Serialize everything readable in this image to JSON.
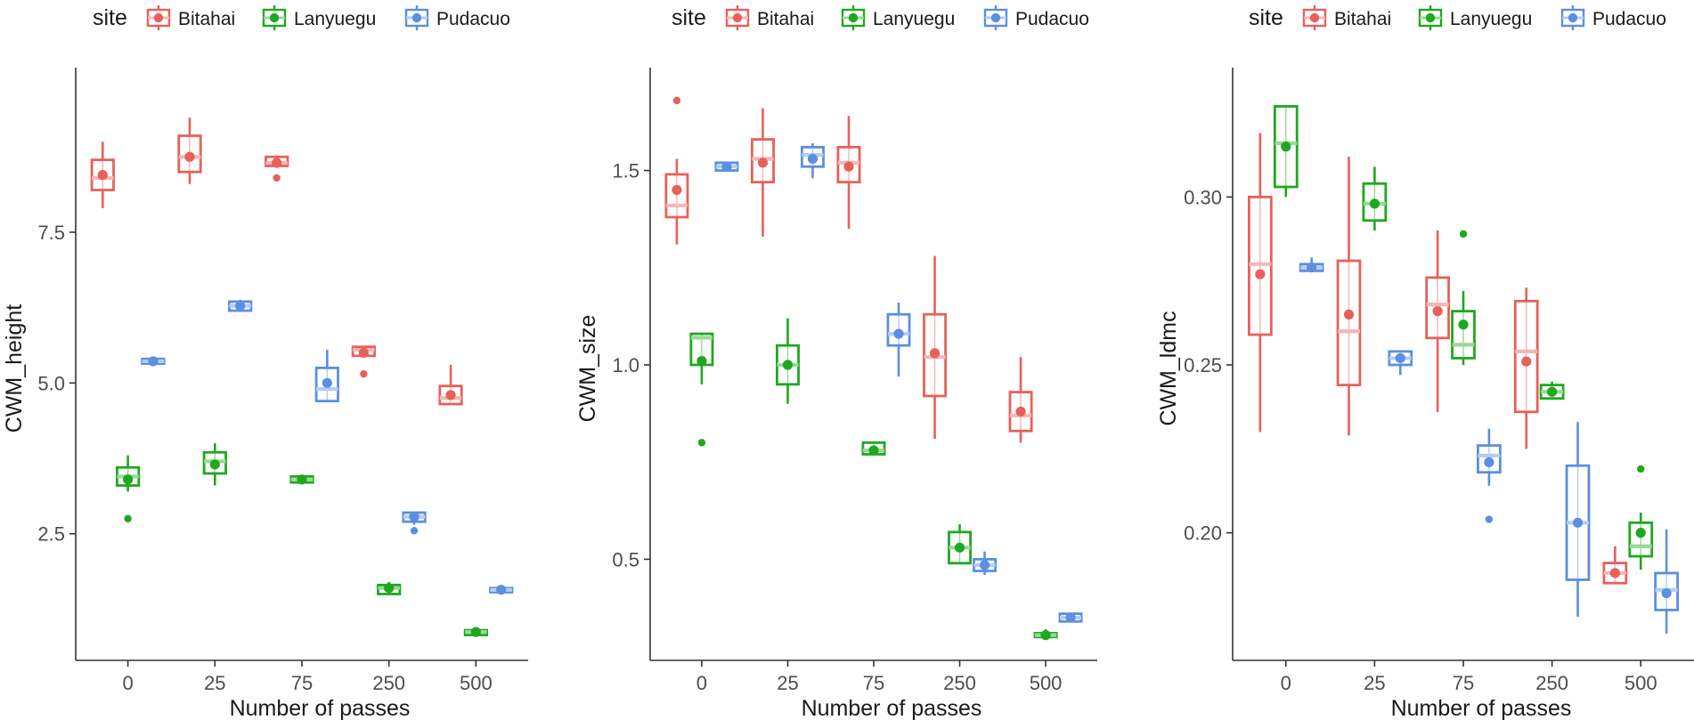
{
  "legend": {
    "title": "site",
    "entries": [
      {
        "label": "Bitahai",
        "color": "#E8605A"
      },
      {
        "label": "Lanyuegu",
        "color": "#1FA81F"
      },
      {
        "label": "Pudacuo",
        "color": "#5B8FE0"
      }
    ]
  },
  "chart_data": [
    {
      "type": "box",
      "title": "",
      "xlabel": "Number of passes",
      "ylabel": "CWM_height",
      "categories": [
        "0",
        "25",
        "75",
        "250",
        "500"
      ],
      "yticks": [
        2.5,
        5.0,
        7.5
      ],
      "ytick_labels": [
        "2.5",
        "5.0",
        "7.5"
      ],
      "ylim": [
        0.4,
        10.2
      ],
      "series": [
        {
          "name": "Bitahai",
          "boxes": [
            {
              "q1": 8.2,
              "median": 8.4,
              "q3": 8.7,
              "lo": 7.9,
              "hi": 9.0,
              "mean": 8.45,
              "out": []
            },
            {
              "q1": 8.5,
              "median": 8.75,
              "q3": 9.1,
              "lo": 8.3,
              "hi": 9.4,
              "mean": 8.75,
              "out": []
            },
            {
              "q1": 8.6,
              "median": 8.65,
              "q3": 8.75,
              "lo": 8.6,
              "hi": 8.75,
              "mean": 8.65,
              "out": [
                8.4
              ]
            },
            {
              "q1": 5.45,
              "median": 5.55,
              "q3": 5.6,
              "lo": 5.45,
              "hi": 5.6,
              "mean": 5.5,
              "out": [
                5.15
              ]
            },
            {
              "q1": 4.65,
              "median": 4.75,
              "q3": 4.95,
              "lo": 4.65,
              "hi": 5.3,
              "mean": 4.8,
              "out": []
            }
          ]
        },
        {
          "name": "Lanyuegu",
          "boxes": [
            {
              "q1": 3.3,
              "median": 3.45,
              "q3": 3.6,
              "lo": 3.2,
              "hi": 3.8,
              "mean": 3.4,
              "out": [
                2.75
              ]
            },
            {
              "q1": 3.5,
              "median": 3.7,
              "q3": 3.85,
              "lo": 3.3,
              "hi": 4.0,
              "mean": 3.65,
              "out": []
            },
            {
              "q1": 3.35,
              "median": 3.4,
              "q3": 3.45,
              "lo": 3.35,
              "hi": 3.45,
              "mean": 3.4,
              "out": []
            },
            {
              "q1": 1.5,
              "median": 1.6,
              "q3": 1.65,
              "lo": 1.5,
              "hi": 1.7,
              "mean": 1.6,
              "out": []
            },
            {
              "q1": 0.82,
              "median": 0.87,
              "q3": 0.9,
              "lo": 0.82,
              "hi": 0.92,
              "mean": 0.87,
              "out": []
            }
          ]
        },
        {
          "name": "Pudacuo",
          "boxes": [
            {
              "q1": 5.32,
              "median": 5.36,
              "q3": 5.4,
              "lo": 5.3,
              "hi": 5.42,
              "mean": 5.36,
              "out": []
            },
            {
              "q1": 6.2,
              "median": 6.28,
              "q3": 6.35,
              "lo": 6.2,
              "hi": 6.38,
              "mean": 6.28,
              "out": []
            },
            {
              "q1": 4.7,
              "median": 4.9,
              "q3": 5.25,
              "lo": 4.7,
              "hi": 5.55,
              "mean": 5.0,
              "out": []
            },
            {
              "q1": 2.7,
              "median": 2.78,
              "q3": 2.85,
              "lo": 2.65,
              "hi": 2.85,
              "mean": 2.78,
              "out": [
                2.55
              ]
            },
            {
              "q1": 1.53,
              "median": 1.57,
              "q3": 1.6,
              "lo": 1.52,
              "hi": 1.62,
              "mean": 1.57,
              "out": []
            }
          ]
        }
      ]
    },
    {
      "type": "box",
      "title": "",
      "xlabel": "Number of passes",
      "ylabel": "CWM_size",
      "categories": [
        "0",
        "25",
        "75",
        "250",
        "500"
      ],
      "yticks": [
        0.5,
        1.0,
        1.5
      ],
      "ytick_labels": [
        "0.5",
        "1.0",
        "1.5"
      ],
      "ylim": [
        0.24,
        1.76
      ],
      "series": [
        {
          "name": "Bitahai",
          "boxes": [
            {
              "q1": 1.38,
              "median": 1.41,
              "q3": 1.49,
              "lo": 1.31,
              "hi": 1.53,
              "mean": 1.45,
              "out": [
                1.68
              ]
            },
            {
              "q1": 1.47,
              "median": 1.53,
              "q3": 1.58,
              "lo": 1.33,
              "hi": 1.66,
              "mean": 1.52,
              "out": []
            },
            {
              "q1": 1.47,
              "median": 1.52,
              "q3": 1.56,
              "lo": 1.35,
              "hi": 1.64,
              "mean": 1.51,
              "out": []
            },
            {
              "q1": 0.92,
              "median": 1.02,
              "q3": 1.13,
              "lo": 0.81,
              "hi": 1.28,
              "mean": 1.03,
              "out": []
            },
            {
              "q1": 0.83,
              "median": 0.87,
              "q3": 0.93,
              "lo": 0.8,
              "hi": 1.02,
              "mean": 0.88,
              "out": []
            }
          ]
        },
        {
          "name": "Lanyuegu",
          "boxes": [
            {
              "q1": 1.0,
              "median": 1.07,
              "q3": 1.08,
              "lo": 0.95,
              "hi": 1.08,
              "mean": 1.01,
              "out": [
                0.8
              ]
            },
            {
              "q1": 0.95,
              "median": 1.0,
              "q3": 1.05,
              "lo": 0.9,
              "hi": 1.12,
              "mean": 1.0,
              "out": []
            },
            {
              "q1": 0.77,
              "median": 0.78,
              "q3": 0.8,
              "lo": 0.77,
              "hi": 0.8,
              "mean": 0.78,
              "out": []
            },
            {
              "q1": 0.49,
              "median": 0.53,
              "q3": 0.57,
              "lo": 0.49,
              "hi": 0.59,
              "mean": 0.53,
              "out": []
            },
            {
              "q1": 0.3,
              "median": 0.305,
              "q3": 0.31,
              "lo": 0.3,
              "hi": 0.32,
              "mean": 0.305,
              "out": []
            }
          ]
        },
        {
          "name": "Pudacuo",
          "boxes": [
            {
              "q1": 1.5,
              "median": 1.51,
              "q3": 1.52,
              "lo": 1.5,
              "hi": 1.52,
              "mean": 1.51,
              "out": []
            },
            {
              "q1": 1.51,
              "median": 1.54,
              "q3": 1.56,
              "lo": 1.48,
              "hi": 1.57,
              "mean": 1.53,
              "out": []
            },
            {
              "q1": 1.05,
              "median": 1.08,
              "q3": 1.13,
              "lo": 0.97,
              "hi": 1.16,
              "mean": 1.08,
              "out": []
            },
            {
              "q1": 0.47,
              "median": 0.485,
              "q3": 0.5,
              "lo": 0.46,
              "hi": 0.52,
              "mean": 0.485,
              "out": []
            },
            {
              "q1": 0.34,
              "median": 0.35,
              "q3": 0.36,
              "lo": 0.34,
              "hi": 0.36,
              "mean": 0.35,
              "out": []
            }
          ]
        }
      ]
    },
    {
      "type": "box",
      "title": "",
      "xlabel": "Number of passes",
      "ylabel": "CWM_ldmc",
      "categories": [
        "0",
        "25",
        "75",
        "250",
        "500"
      ],
      "yticks": [
        0.2,
        0.25,
        0.3
      ],
      "ytick_labels": [
        "0.20",
        "0.25",
        "0.30"
      ],
      "ylim": [
        0.162,
        0.338
      ],
      "series": [
        {
          "name": "Bitahai",
          "boxes": [
            {
              "q1": 0.259,
              "median": 0.28,
              "q3": 0.3,
              "lo": 0.23,
              "hi": 0.319,
              "mean": 0.277,
              "out": []
            },
            {
              "q1": 0.244,
              "median": 0.26,
              "q3": 0.281,
              "lo": 0.229,
              "hi": 0.312,
              "mean": 0.265,
              "out": []
            },
            {
              "q1": 0.258,
              "median": 0.268,
              "q3": 0.276,
              "lo": 0.236,
              "hi": 0.29,
              "mean": 0.266,
              "out": []
            },
            {
              "q1": 0.236,
              "median": 0.254,
              "q3": 0.269,
              "lo": 0.225,
              "hi": 0.273,
              "mean": 0.251,
              "out": []
            },
            {
              "q1": 0.185,
              "median": 0.188,
              "q3": 0.191,
              "lo": 0.185,
              "hi": 0.196,
              "mean": 0.188,
              "out": []
            }
          ]
        },
        {
          "name": "Lanyuegu",
          "boxes": [
            {
              "q1": 0.303,
              "median": 0.316,
              "q3": 0.327,
              "lo": 0.3,
              "hi": 0.327,
              "mean": 0.315,
              "out": []
            },
            {
              "q1": 0.293,
              "median": 0.298,
              "q3": 0.304,
              "lo": 0.29,
              "hi": 0.309,
              "mean": 0.298,
              "out": []
            },
            {
              "q1": 0.252,
              "median": 0.256,
              "q3": 0.266,
              "lo": 0.25,
              "hi": 0.272,
              "mean": 0.262,
              "out": [
                0.289
              ]
            },
            {
              "q1": 0.24,
              "median": 0.242,
              "q3": 0.244,
              "lo": 0.24,
              "hi": 0.245,
              "mean": 0.242,
              "out": []
            },
            {
              "q1": 0.193,
              "median": 0.196,
              "q3": 0.203,
              "lo": 0.189,
              "hi": 0.206,
              "mean": 0.2,
              "out": [
                0.219
              ]
            }
          ]
        },
        {
          "name": "Pudacuo",
          "boxes": [
            {
              "q1": 0.278,
              "median": 0.279,
              "q3": 0.28,
              "lo": 0.278,
              "hi": 0.282,
              "mean": 0.279,
              "out": []
            },
            {
              "q1": 0.25,
              "median": 0.252,
              "q3": 0.254,
              "lo": 0.247,
              "hi": 0.254,
              "mean": 0.252,
              "out": []
            },
            {
              "q1": 0.218,
              "median": 0.223,
              "q3": 0.226,
              "lo": 0.214,
              "hi": 0.231,
              "mean": 0.221,
              "out": [
                0.204
              ]
            },
            {
              "q1": 0.186,
              "median": 0.203,
              "q3": 0.22,
              "lo": 0.175,
              "hi": 0.233,
              "mean": 0.203,
              "out": []
            },
            {
              "q1": 0.177,
              "median": 0.183,
              "q3": 0.188,
              "lo": 0.17,
              "hi": 0.201,
              "mean": 0.182,
              "out": []
            }
          ]
        }
      ]
    }
  ]
}
